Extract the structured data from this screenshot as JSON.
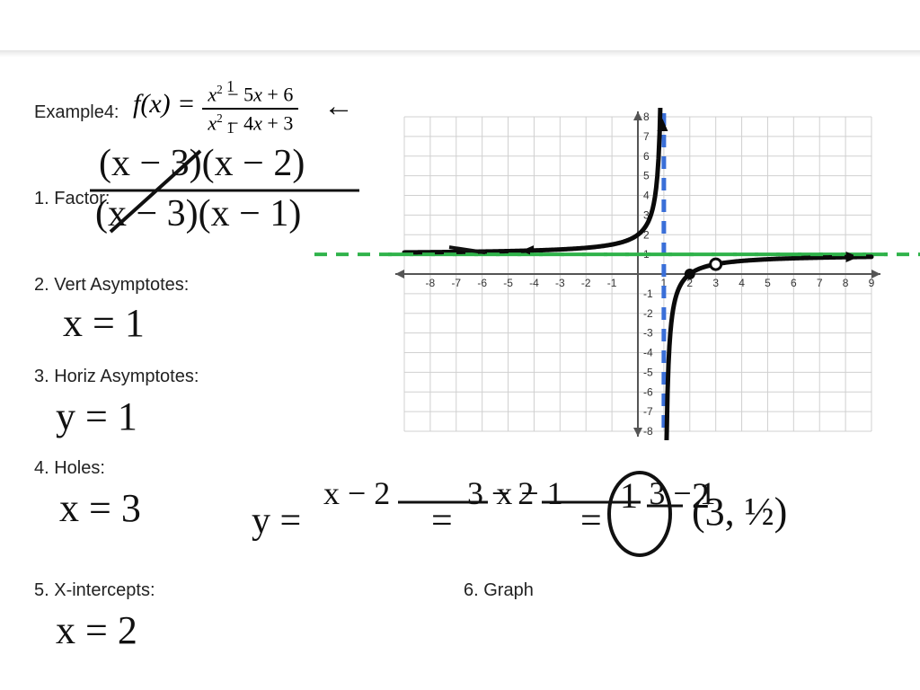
{
  "header": {
    "example_label": "Example4:",
    "fx_lhs": "f(x)  =",
    "numerator": "x² − 5x + 6",
    "denominator": "x² − 4x + 3"
  },
  "steps": {
    "s1": "1. Factor:",
    "s2": "2. Vert Asymptotes:",
    "s3": "3. Horiz Asymptotes:",
    "s4": "4. Holes:",
    "s5": "5. X-intercepts:",
    "s6": "6. Graph"
  },
  "handwriting": {
    "factor_top": "(x − 3)(x − 2)",
    "factor_bot": "(x − 3)(x − 1)",
    "vert_asy": "x = 1",
    "horiz_asy": "y = 1",
    "holes": "x = 3",
    "xint": "x = 2",
    "work_y": "y =",
    "work_f1_num": "x − 2",
    "work_f1_den": "x − 1",
    "work_eq1": "=",
    "work_f2_num": "3 − 2",
    "work_f2_den": "3 − 1",
    "work_eq2": "=",
    "work_f3_num": "1",
    "work_f3_den": "2",
    "work_point": "(3, ½)",
    "arrow_note": "←"
  },
  "graph": {
    "type": "rational-function-plot",
    "xlim": [
      -9,
      9
    ],
    "ylim": [
      -8,
      8
    ],
    "xtick_labels": [
      "-8",
      "-7",
      "-6",
      "-5",
      "-4",
      "-3",
      "-2",
      "-1",
      "1",
      "2",
      "3",
      "4",
      "5",
      "6",
      "7",
      "8",
      "9"
    ],
    "ytick_labels": [
      "8",
      "7",
      "6",
      "5",
      "4",
      "3",
      "2",
      "1",
      "-1",
      "-2",
      "-3",
      "-4",
      "-5",
      "-6",
      "-7",
      "-8"
    ],
    "grid_color": "#d0d0d0",
    "axis_color": "#555555",
    "axis_label_color": "#333333",
    "curve_color": "#0a0a0a",
    "curve_width": 5,
    "vert_asymptote_x": 1,
    "vert_asymptote_color": "#3a6fd8",
    "vert_asymptote_width": 5,
    "horiz_asymptote_y": 1,
    "horiz_asymptote_color": "#2fb24a",
    "horiz_asymptote_width": 4,
    "hole_point": [
      3,
      0.5
    ],
    "intercept_point": [
      2,
      0
    ],
    "dash": "14 10",
    "tick_fontsize": 12
  },
  "colors": {
    "page_bg": "#ffffff",
    "text": "#222222",
    "hand": "#111111",
    "green": "#2fb24a",
    "blue": "#3a6fd8"
  }
}
